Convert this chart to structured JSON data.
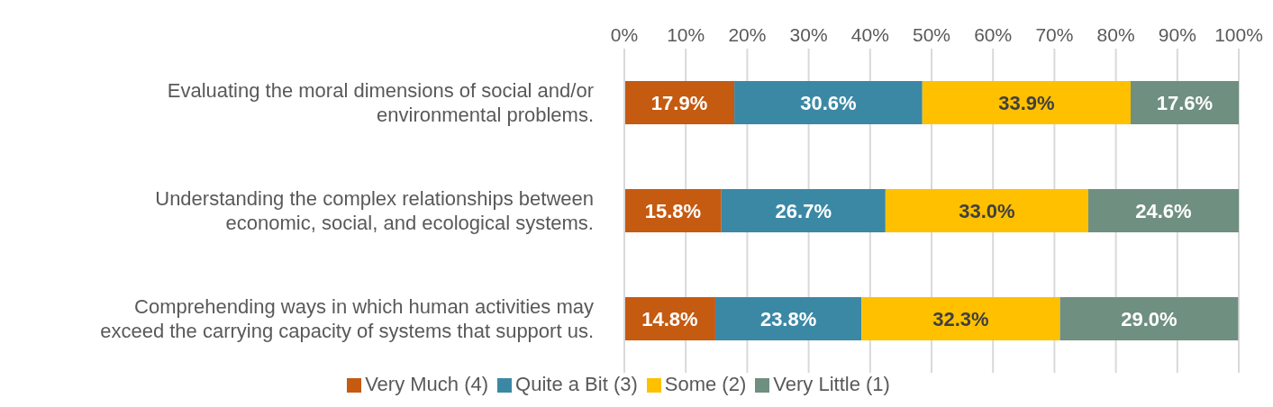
{
  "chart_data": {
    "type": "bar",
    "orientation": "horizontal",
    "stacked": true,
    "categories": [
      "Evaluating the moral dimensions of social and/or environmental problems.",
      "Understanding the complex relationships between economic, social, and ecological systems.",
      "Comprehending ways in which human activities may exceed the carrying capacity of systems that support us."
    ],
    "series": [
      {
        "name": "Very Much (4)",
        "color": "#c55a11",
        "values": [
          17.9,
          15.8,
          14.8
        ],
        "value_labels": [
          "17.9%",
          "15.8%",
          "14.8%"
        ]
      },
      {
        "name": "Quite a Bit (3)",
        "color": "#3b88a5",
        "values": [
          30.6,
          26.7,
          23.8
        ],
        "value_labels": [
          "30.6%",
          "26.7%",
          "23.8%"
        ]
      },
      {
        "name": "Some (2)",
        "color": "#ffc000",
        "values": [
          33.9,
          33.0,
          32.3
        ],
        "value_labels": [
          "33.9%",
          "33.0%",
          "32.3%"
        ]
      },
      {
        "name": "Very Little (1)",
        "color": "#6f8f80",
        "values": [
          17.6,
          24.6,
          29.0
        ],
        "value_labels": [
          "17.6%",
          "24.6%",
          "29.0%"
        ]
      }
    ],
    "xlim": [
      0,
      100
    ],
    "xticks": [
      {
        "value": 0,
        "label": "0%"
      },
      {
        "value": 10,
        "label": "10%"
      },
      {
        "value": 20,
        "label": "20%"
      },
      {
        "value": 30,
        "label": "30%"
      },
      {
        "value": 40,
        "label": "40%"
      },
      {
        "value": 50,
        "label": "50%"
      },
      {
        "value": 60,
        "label": "60%"
      },
      {
        "value": 70,
        "label": "70%"
      },
      {
        "value": 80,
        "label": "80%"
      },
      {
        "value": 90,
        "label": "90%"
      },
      {
        "value": 100,
        "label": "100%"
      }
    ],
    "grid": "x",
    "legend": "bottom"
  }
}
